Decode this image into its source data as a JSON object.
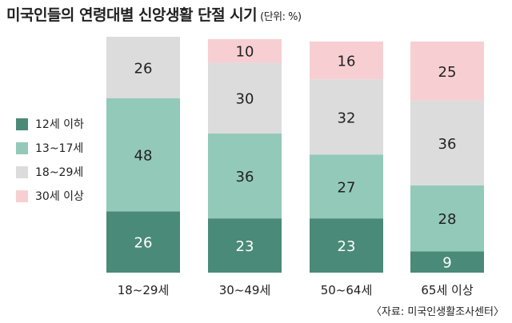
{
  "chart_data": {
    "type": "bar",
    "stacked": true,
    "title": "미국인들의 연령대별 신앙생활 단절 시기",
    "unit": "(단위: %)",
    "categories": [
      "18~29세",
      "30~49세",
      "50~64세",
      "65세 이상"
    ],
    "series": [
      {
        "name": "12세 이하",
        "color": "#4a8a78",
        "label_color": "#ffffff",
        "values": [
          26,
          23,
          23,
          9
        ]
      },
      {
        "name": "13~17세",
        "color": "#93c9b8",
        "label_color": "#222222",
        "values": [
          48,
          36,
          27,
          28
        ]
      },
      {
        "name": "18~29세",
        "color": "#dcdcdc",
        "label_color": "#222222",
        "values": [
          26,
          30,
          32,
          36
        ]
      },
      {
        "name": "30세 이상",
        "color": "#f7cfd3",
        "label_color": "#222222",
        "values": [
          0,
          10,
          16,
          25
        ]
      }
    ],
    "ylim": [
      0,
      100
    ],
    "legend_position": "left",
    "source": "〈자료: 미국인생활조사센터〉"
  }
}
